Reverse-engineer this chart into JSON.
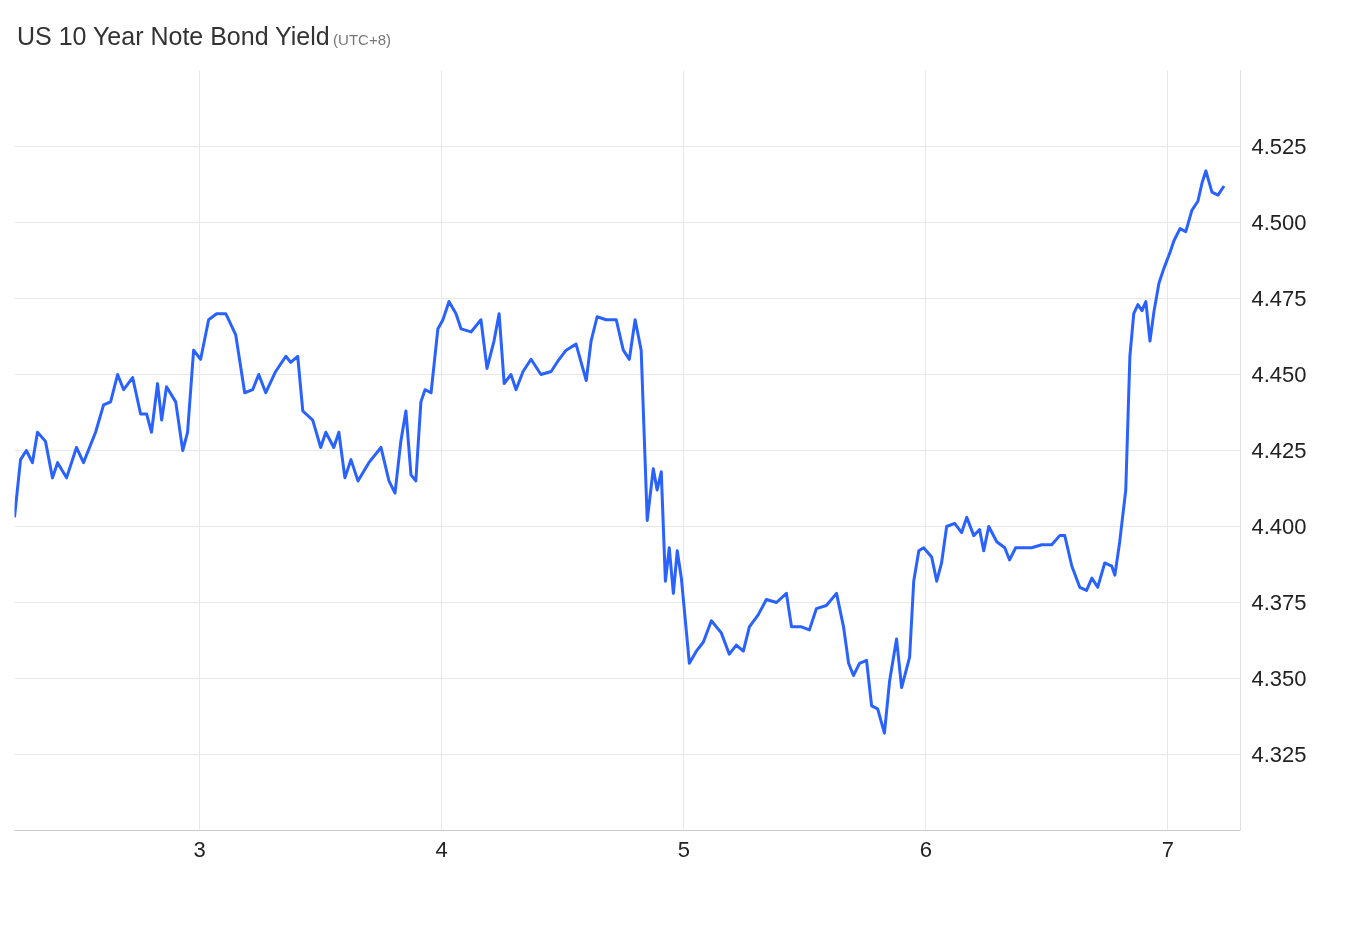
{
  "chart_data": {
    "type": "line",
    "title": "US 10 Year Note Bond Yield",
    "subtitle": "(UTC+8)",
    "x": [
      2.235,
      2.26,
      2.284,
      2.309,
      2.33,
      2.363,
      2.392,
      2.413,
      2.45,
      2.491,
      2.52,
      2.57,
      2.603,
      2.632,
      2.661,
      2.686,
      2.723,
      2.756,
      2.781,
      2.801,
      2.826,
      2.843,
      2.863,
      2.901,
      2.93,
      2.95,
      2.975,
      3.004,
      3.037,
      3.07,
      3.108,
      3.149,
      3.186,
      3.219,
      3.244,
      3.273,
      3.314,
      3.356,
      3.376,
      3.405,
      3.426,
      3.467,
      3.5,
      3.521,
      3.554,
      3.575,
      3.6,
      3.625,
      3.654,
      3.699,
      3.749,
      3.782,
      3.807,
      3.831,
      3.852,
      3.873,
      3.893,
      3.914,
      3.931,
      3.956,
      3.984,
      4.005,
      4.03,
      4.059,
      4.08,
      4.121,
      4.162,
      4.187,
      4.216,
      4.237,
      4.258,
      4.286,
      4.307,
      4.336,
      4.369,
      4.41,
      4.452,
      4.485,
      4.514,
      4.555,
      4.597,
      4.617,
      4.642,
      4.679,
      4.721,
      4.75,
      4.775,
      4.799,
      4.824,
      4.849,
      4.874,
      4.89,
      4.907,
      4.924,
      4.94,
      4.957,
      4.973,
      4.99,
      5.023,
      5.052,
      5.081,
      5.114,
      5.155,
      5.188,
      5.217,
      5.246,
      5.271,
      5.308,
      5.341,
      5.383,
      5.424,
      5.445,
      5.486,
      5.519,
      5.548,
      5.589,
      5.631,
      5.66,
      5.681,
      5.701,
      5.726,
      5.755,
      5.776,
      5.801,
      5.829,
      5.85,
      5.879,
      5.9,
      5.933,
      5.95,
      5.971,
      5.991,
      6.024,
      6.045,
      6.065,
      6.086,
      6.119,
      6.148,
      6.169,
      6.198,
      6.222,
      6.239,
      6.26,
      6.293,
      6.326,
      6.346,
      6.371,
      6.404,
      6.437,
      6.479,
      6.52,
      6.553,
      6.574,
      6.603,
      6.636,
      6.664,
      6.686,
      6.71,
      6.739,
      6.768,
      6.781,
      6.801,
      6.826,
      6.843,
      6.859,
      6.876,
      6.893,
      6.909,
      6.926,
      6.943,
      6.963,
      6.984,
      7.008,
      7.025,
      7.05,
      7.074,
      7.099,
      7.124,
      7.141,
      7.157,
      7.182,
      7.207,
      7.232
    ],
    "series": [
      {
        "color": "#2962ff",
        "values": [
          4.403,
          4.422,
          4.425,
          4.421,
          4.431,
          4.428,
          4.416,
          4.421,
          4.416,
          4.426,
          4.421,
          4.431,
          4.44,
          4.441,
          4.45,
          4.445,
          4.449,
          4.437,
          4.437,
          4.431,
          4.447,
          4.435,
          4.446,
          4.441,
          4.425,
          4.431,
          4.458,
          4.455,
          4.468,
          4.47,
          4.47,
          4.463,
          4.444,
          4.445,
          4.45,
          4.444,
          4.451,
          4.456,
          4.454,
          4.456,
          4.438,
          4.435,
          4.426,
          4.431,
          4.426,
          4.431,
          4.416,
          4.422,
          4.415,
          4.421,
          4.426,
          4.415,
          4.411,
          4.428,
          4.438,
          4.417,
          4.415,
          4.441,
          4.445,
          4.444,
          4.465,
          4.468,
          4.474,
          4.47,
          4.465,
          4.464,
          4.468,
          4.452,
          4.461,
          4.47,
          4.447,
          4.45,
          4.445,
          4.451,
          4.455,
          4.45,
          4.451,
          4.455,
          4.458,
          4.46,
          4.448,
          4.461,
          4.469,
          4.468,
          4.468,
          4.458,
          4.455,
          4.468,
          4.458,
          4.402,
          4.419,
          4.412,
          4.418,
          4.382,
          4.393,
          4.378,
          4.392,
          4.383,
          4.355,
          4.359,
          4.362,
          4.369,
          4.365,
          4.358,
          4.361,
          4.359,
          4.367,
          4.371,
          4.376,
          4.375,
          4.378,
          4.367,
          4.367,
          4.366,
          4.373,
          4.374,
          4.378,
          4.367,
          4.355,
          4.351,
          4.355,
          4.356,
          4.341,
          4.34,
          4.332,
          4.349,
          4.363,
          4.347,
          4.357,
          4.382,
          4.392,
          4.393,
          4.39,
          4.382,
          4.388,
          4.4,
          4.401,
          4.398,
          4.403,
          4.397,
          4.399,
          4.392,
          4.4,
          4.395,
          4.393,
          4.389,
          4.393,
          4.393,
          4.393,
          4.394,
          4.394,
          4.397,
          4.397,
          4.387,
          4.38,
          4.379,
          4.383,
          4.38,
          4.388,
          4.387,
          4.384,
          4.395,
          4.412,
          4.456,
          4.47,
          4.473,
          4.471,
          4.474,
          4.461,
          4.471,
          4.48,
          4.485,
          4.49,
          4.494,
          4.498,
          4.497,
          4.504,
          4.507,
          4.513,
          4.517,
          4.51,
          4.509,
          4.512
        ]
      }
    ],
    "xlim": [
      2.235,
      7.3
    ],
    "xticks": [
      3,
      4,
      5,
      6,
      7
    ],
    "ylim": [
      4.3,
      4.55
    ],
    "yticks": [
      {
        "value": 4.325,
        "label": "4.325"
      },
      {
        "value": 4.35,
        "label": "4.350"
      },
      {
        "value": 4.375,
        "label": "4.375"
      },
      {
        "value": 4.4,
        "label": "4.400"
      },
      {
        "value": 4.425,
        "label": "4.425"
      },
      {
        "value": 4.45,
        "label": "4.450"
      },
      {
        "value": 4.475,
        "label": "4.475"
      },
      {
        "value": 4.5,
        "label": "4.500"
      },
      {
        "value": 4.525,
        "label": "4.525"
      }
    ],
    "grid": true,
    "marker": "none",
    "line_style": "solid"
  }
}
